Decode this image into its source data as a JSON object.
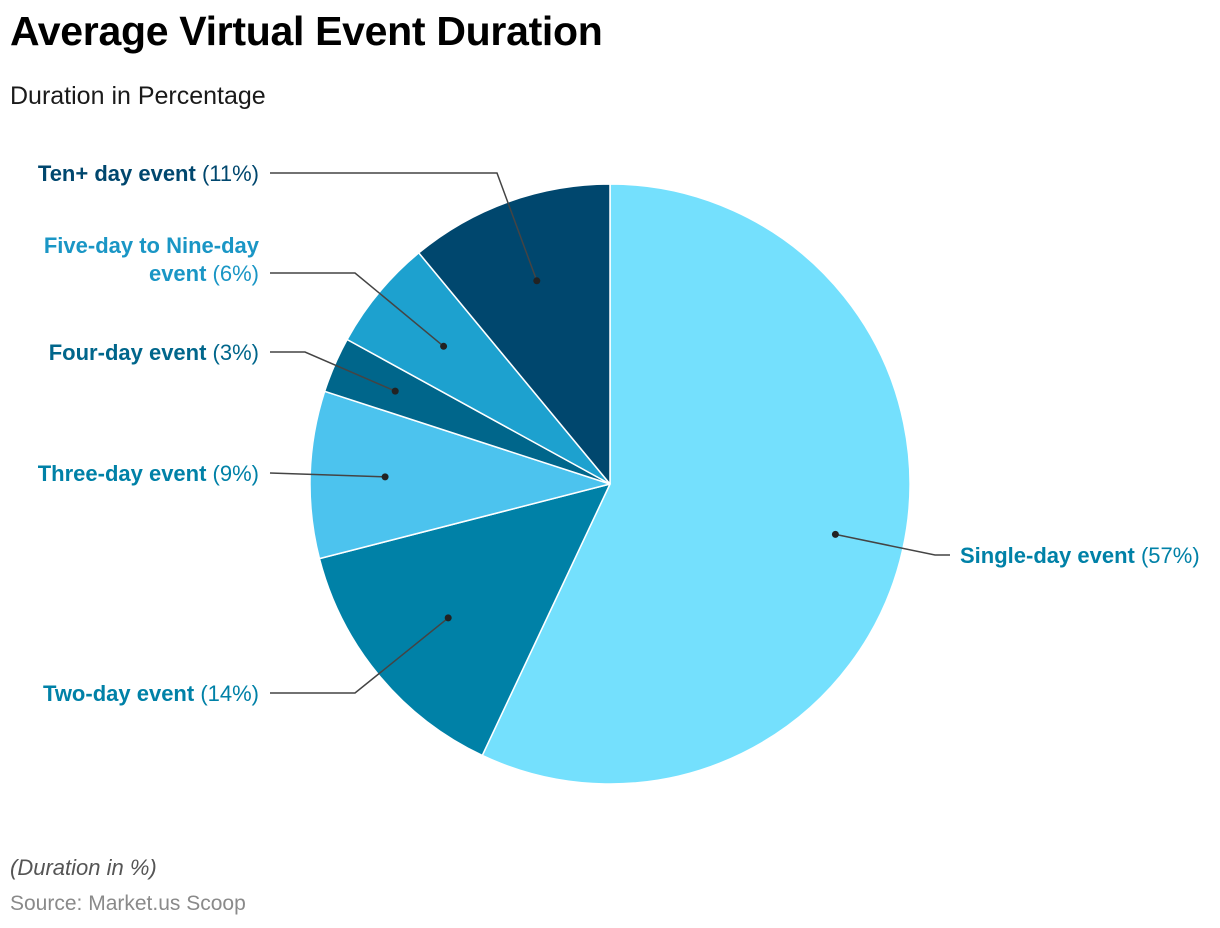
{
  "title": "Average Virtual Event Duration",
  "subtitle": "Duration in Percentage",
  "note": "(Duration in %)",
  "source": "Source: Market.us Scoop",
  "chart_data": {
    "type": "pie",
    "title": "Average Virtual Event Duration",
    "subtitle": "Duration in Percentage",
    "unit": "%",
    "start_angle": "12 o'clock",
    "direction": "clockwise",
    "slices": [
      {
        "label": "Single-day event",
        "value": 57,
        "value_label": "(57%)",
        "color": "#74E0FD",
        "label_color": "#0081A7"
      },
      {
        "label": "Two-day event",
        "value": 14,
        "value_label": "(14%)",
        "color": "#0081A7",
        "label_color": "#0081A7"
      },
      {
        "label": "Three-day event",
        "value": 9,
        "value_label": "(9%)",
        "color": "#4CC3EE",
        "label_color": "#0081A7"
      },
      {
        "label": "Four-day event",
        "value": 3,
        "value_label": "(3%)",
        "color": "#00668B",
        "label_color": "#00668B"
      },
      {
        "label": "Five-day to Nine-day event",
        "value": 6,
        "value_label": "(6%)",
        "label_lines": [
          "Five-day to Nine-day",
          "event"
        ],
        "color": "#1DA1CF",
        "label_color": "#1A96C5"
      },
      {
        "label": "Ten+ day event",
        "value": 11,
        "value_label": "(11%)",
        "color": "#00476E",
        "label_color": "#00476E"
      }
    ]
  }
}
